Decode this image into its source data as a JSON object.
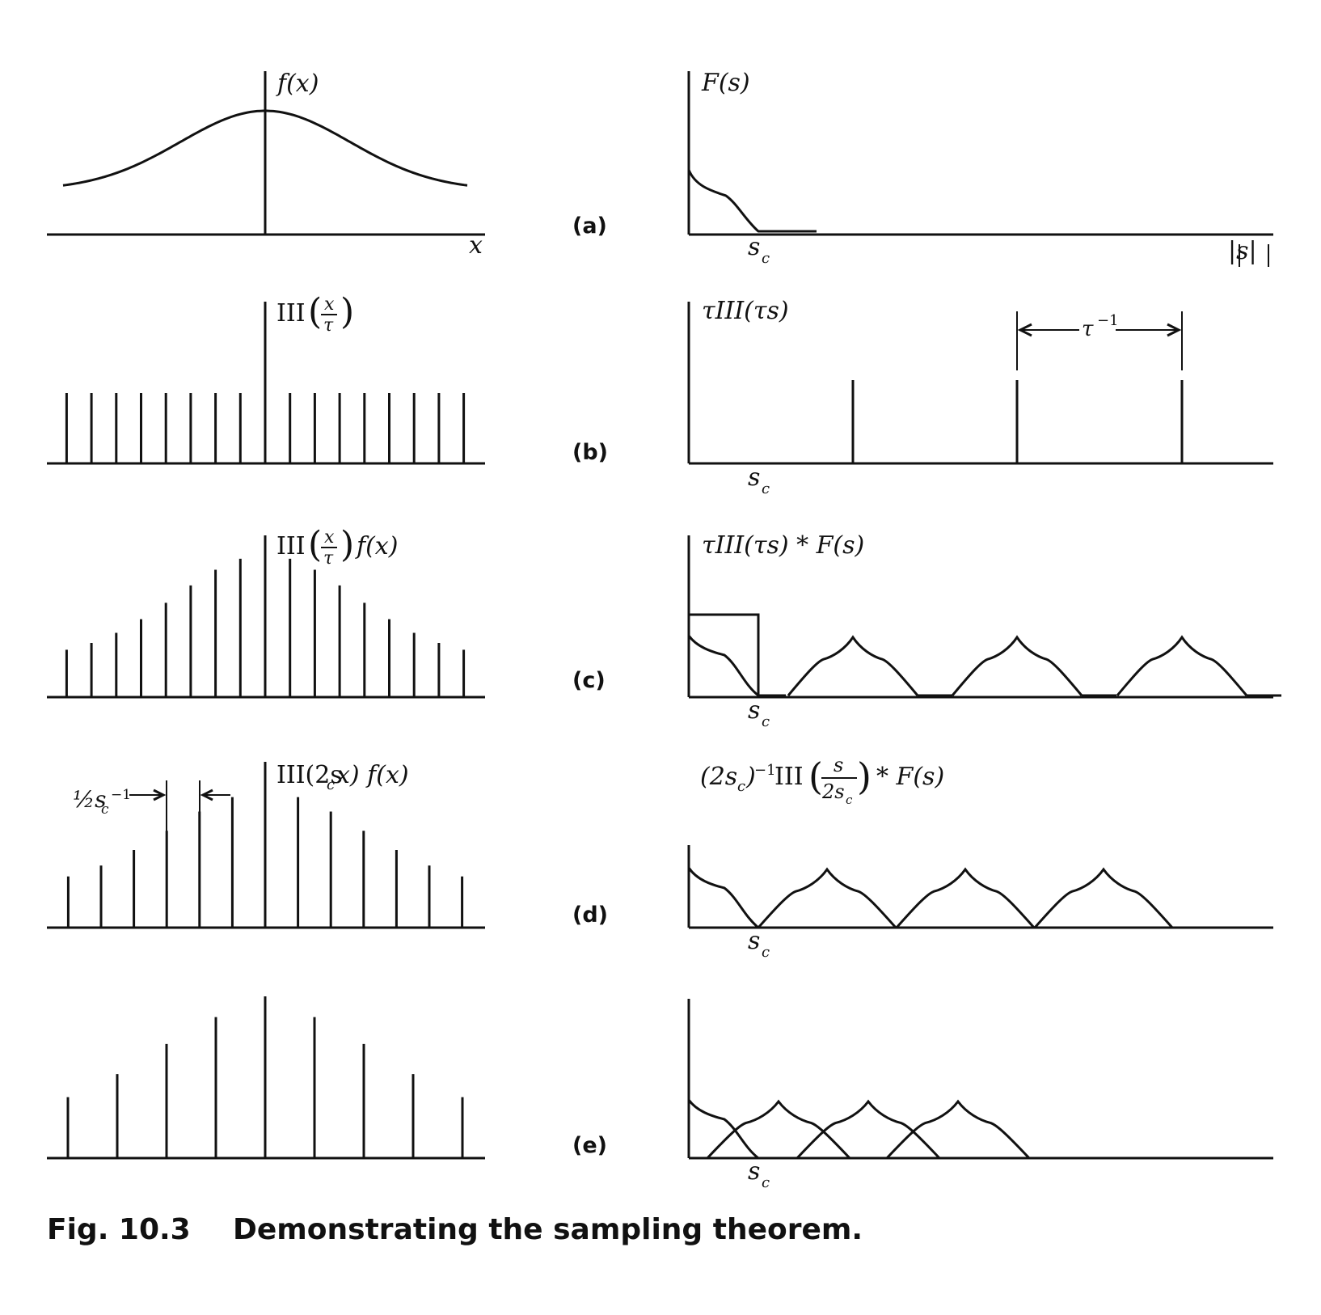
{
  "figure": {
    "caption_number": "Fig. 10.3",
    "caption_text": "Demonstrating the sampling theorem.",
    "panels": [
      {
        "id": "a",
        "label": "(a)",
        "left_label": "f(x)",
        "left_axis_label": "x",
        "right_label": "F(s)",
        "right_axis_label": "|s|",
        "sc_label": "s",
        "sc_sub": "c"
      },
      {
        "id": "b",
        "label": "(b)",
        "left_label": "III(x/τ)",
        "right_label": "τIII(τs)",
        "period_label": "τ",
        "period_sup": "−1",
        "sc_label": "s",
        "sc_sub": "c"
      },
      {
        "id": "c",
        "label": "(c)",
        "left_label": "III(x/τ) f(x)",
        "right_label": "τIII(τs) * F(s)",
        "sc_label": "s",
        "sc_sub": "c"
      },
      {
        "id": "d",
        "label": "(d)",
        "left_label": "III(2s",
        "left_label_sub": "c",
        "left_label_tail": "x) f(x)",
        "spacing_label": "½s",
        "spacing_sub": "c",
        "spacing_sup": "−1",
        "right_label_pre": "(2s",
        "right_label_sub": "c",
        "right_label_mid": ")",
        "right_label_sup": "−1",
        "right_label_iii": "III",
        "frac_num": "s",
        "frac_den": "2s",
        "frac_den_sub": "c",
        "right_label_tail": "* F(s)",
        "sc_label": "s",
        "sc_sub": "c"
      },
      {
        "id": "e",
        "label": "(e)",
        "sc_label": "s",
        "sc_sub": "c"
      }
    ]
  }
}
